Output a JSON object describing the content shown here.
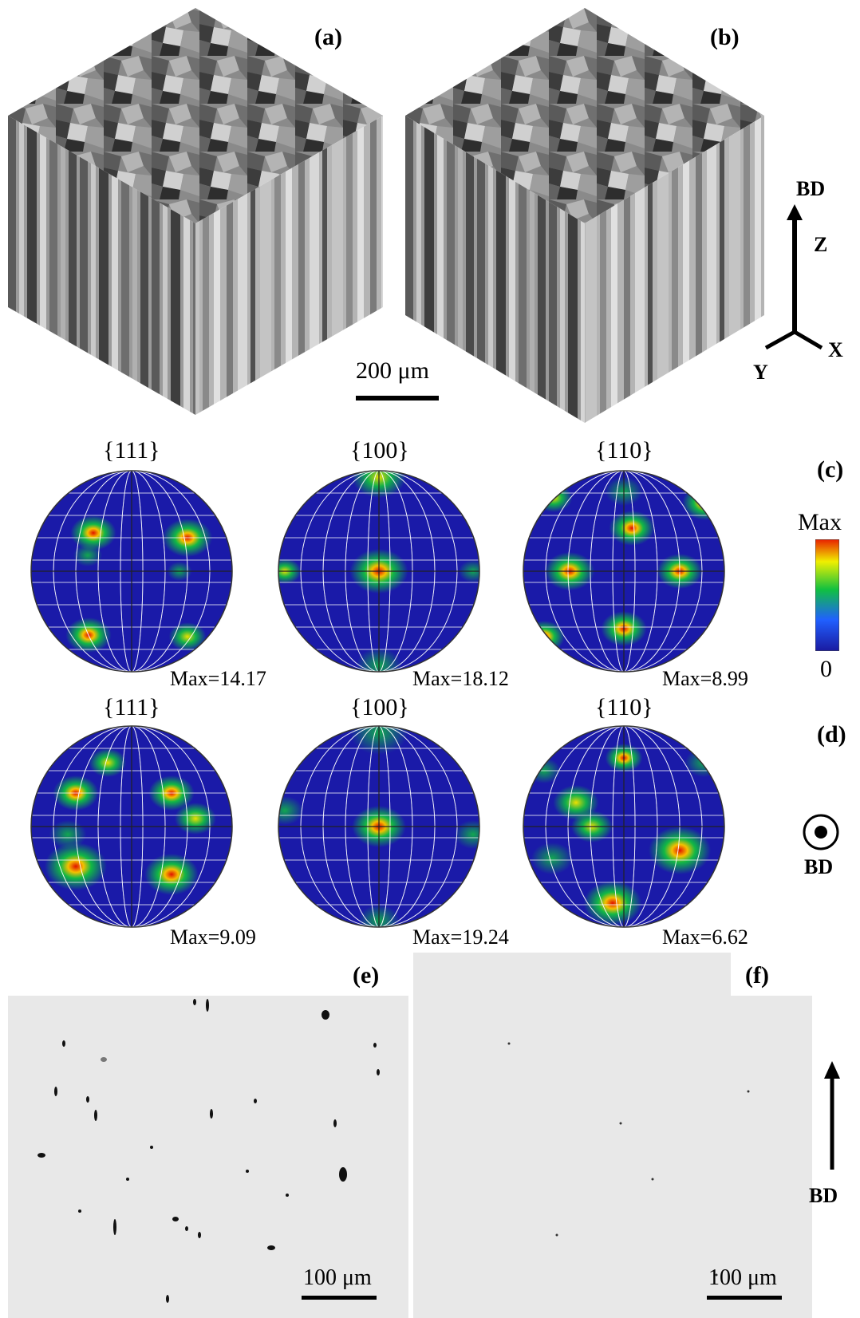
{
  "panels": {
    "a": "(a)",
    "b": "(b)",
    "c": "(c)",
    "d": "(d)",
    "e": "(e)",
    "f": "(f)"
  },
  "scale_bars": {
    "top": "200 μm",
    "e": "100 μm",
    "f": "100 μm"
  },
  "axes": {
    "bd": "BD",
    "z": "Z",
    "x": "X",
    "y": "Y"
  },
  "pole_figures": {
    "row_c": [
      {
        "family": "{111}",
        "max": "Max=14.17"
      },
      {
        "family": "{100}",
        "max": "Max=18.12"
      },
      {
        "family": "{110}",
        "max": "Max=8.99"
      }
    ],
    "row_d": [
      {
        "family": "{111}",
        "max": "Max=9.09"
      },
      {
        "family": "{100}",
        "max": "Max=19.24"
      },
      {
        "family": "{110}",
        "max": "Max=6.62"
      }
    ]
  },
  "colorbar": {
    "top_label": "Max",
    "bottom_label": "0",
    "colors": [
      "#1a1aa0",
      "#2060ff",
      "#10c040",
      "#f0f000",
      "#e82000"
    ]
  },
  "bd_symbol_label": "BD",
  "bd_arrow_label": "BD"
}
